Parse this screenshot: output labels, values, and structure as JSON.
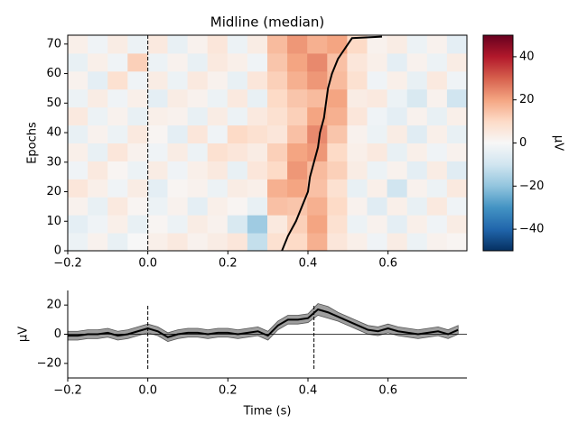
{
  "chart_data": [
    {
      "type": "heatmap",
      "title": "Midline (median)",
      "ylabel": "Epochs",
      "xlim": [
        -0.2,
        0.797
      ],
      "ylim": [
        0,
        73
      ],
      "xticks": [
        {
          "value": -0.2,
          "label": "−0.2"
        },
        {
          "value": 0,
          "label": "0.0"
        },
        0.2,
        0.4,
        0.6
      ],
      "yticks": [
        0,
        10,
        20,
        30,
        40,
        50,
        60,
        70
      ],
      "colormap": "RdBu_r",
      "vlim": [
        -50,
        50
      ],
      "colorbar_label": "µV",
      "colorbar_ticks": [
        {
          "value": -40,
          "label": "−40"
        },
        {
          "value": -20,
          "label": "−20"
        },
        0,
        20,
        40
      ],
      "vlines": [
        0
      ],
      "z": [
        [
          -3,
          2,
          -4,
          0,
          3,
          5,
          2,
          4,
          6,
          -12,
          8,
          10,
          18,
          6,
          3,
          -2,
          4,
          -3,
          2,
          1
        ],
        [
          -5,
          -2,
          3,
          -4,
          1,
          -3,
          4,
          2,
          -8,
          -18,
          5,
          12,
          20,
          8,
          -3,
          2,
          -5,
          3,
          -2,
          4
        ],
        [
          2,
          -4,
          5,
          1,
          -3,
          2,
          -5,
          3,
          1,
          -4,
          15,
          14,
          18,
          10,
          2,
          -6,
          3,
          -4,
          5,
          -2
        ],
        [
          6,
          3,
          -2,
          4,
          -5,
          1,
          2,
          -3,
          4,
          3,
          18,
          20,
          15,
          8,
          -4,
          3,
          -10,
          2,
          -3,
          5
        ],
        [
          -2,
          5,
          1,
          -3,
          4,
          -2,
          3,
          5,
          -4,
          6,
          10,
          22,
          16,
          12,
          4,
          -3,
          2,
          -5,
          4,
          -6
        ],
        [
          3,
          -4,
          6,
          2,
          -2,
          4,
          -3,
          8,
          6,
          4,
          12,
          20,
          22,
          10,
          3,
          5,
          -4,
          3,
          -2,
          2
        ],
        [
          -4,
          2,
          -3,
          5,
          1,
          -5,
          6,
          -2,
          10,
          8,
          6,
          15,
          24,
          14,
          2,
          -3,
          4,
          -6,
          3,
          -4
        ],
        [
          5,
          -3,
          2,
          -4,
          3,
          2,
          -4,
          4,
          -3,
          5,
          8,
          12,
          20,
          18,
          6,
          -2,
          -5,
          2,
          -4,
          3
        ],
        [
          -3,
          4,
          -2,
          3,
          -5,
          4,
          2,
          -3,
          5,
          -4,
          10,
          14,
          16,
          20,
          4,
          5,
          -3,
          -8,
          2,
          -10
        ],
        [
          2,
          -5,
          8,
          -2,
          4,
          -3,
          5,
          2,
          -4,
          6,
          12,
          18,
          22,
          16,
          8,
          -2,
          3,
          -4,
          5,
          -2
        ],
        [
          -4,
          3,
          -2,
          12,
          -3,
          2,
          -4,
          5,
          3,
          -2,
          14,
          20,
          24,
          15,
          6,
          3,
          -5,
          2,
          -3,
          4
        ],
        [
          3,
          -2,
          4,
          -3,
          5,
          -4,
          2,
          6,
          -3,
          4,
          16,
          22,
          18,
          20,
          10,
          2,
          4,
          -3,
          2,
          -5
        ]
      ],
      "sort_line": {
        "color": "#000000",
        "x": [
          0.335,
          0.35,
          0.37,
          0.385,
          0.4,
          0.405,
          0.415,
          0.425,
          0.43,
          0.44,
          0.445,
          0.45,
          0.46,
          0.475,
          0.5,
          0.51,
          0.585
        ],
        "y": [
          0,
          5,
          10,
          15,
          20,
          25,
          30,
          35,
          40,
          45,
          50,
          55,
          60,
          65,
          70,
          72,
          72.5
        ]
      }
    },
    {
      "type": "line",
      "xlabel": "Time (s)",
      "ylabel": "µV",
      "xlim": [
        -0.2,
        0.797
      ],
      "ylim": [
        -30,
        30
      ],
      "xticks": [
        {
          "value": -0.2,
          "label": "−0.2"
        },
        {
          "value": 0,
          "label": "0.0"
        },
        0.2,
        0.4,
        0.6
      ],
      "yticks": [
        {
          "value": -20,
          "label": "−20"
        },
        0,
        20
      ],
      "vlines": [
        0,
        0.415
      ],
      "band_color": "#9e9e9e",
      "x": [
        -0.2,
        -0.175,
        -0.15,
        -0.125,
        -0.1,
        -0.075,
        -0.05,
        -0.025,
        0,
        0.025,
        0.05,
        0.075,
        0.1,
        0.125,
        0.15,
        0.175,
        0.2,
        0.225,
        0.25,
        0.275,
        0.3,
        0.325,
        0.35,
        0.375,
        0.4,
        0.425,
        0.45,
        0.475,
        0.5,
        0.525,
        0.55,
        0.575,
        0.6,
        0.625,
        0.65,
        0.675,
        0.7,
        0.725,
        0.75,
        0.775
      ],
      "series": [
        {
          "color": "#000000",
          "values": [
            -1,
            -1,
            0,
            0,
            1,
            -1,
            0,
            2,
            4,
            2,
            -2,
            0,
            1,
            1,
            0,
            1,
            1,
            0,
            1,
            2,
            -1,
            6,
            10,
            10,
            11,
            17,
            15,
            12,
            9,
            6,
            3,
            2,
            4,
            2,
            1,
            0,
            1,
            2,
            0,
            3
          ],
          "ci": [
            3,
            3,
            3,
            3,
            3,
            3,
            3,
            3,
            3,
            3,
            3,
            3,
            3,
            3,
            3,
            3,
            3,
            3,
            3,
            3,
            3,
            3,
            3,
            3,
            3,
            4,
            4,
            3,
            3,
            3,
            3,
            3,
            3,
            3,
            3,
            3,
            3,
            3,
            3,
            3
          ]
        }
      ]
    }
  ]
}
